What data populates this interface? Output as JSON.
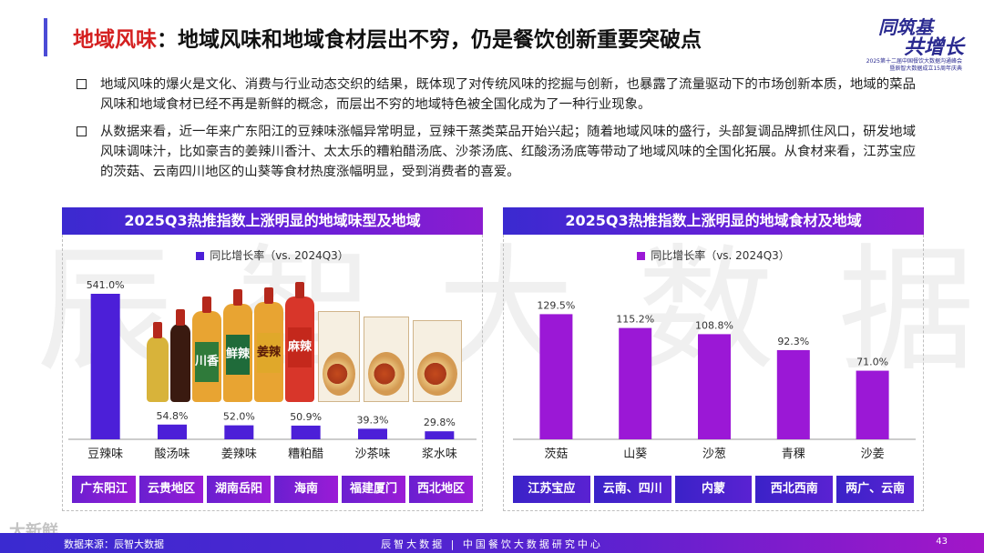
{
  "header": {
    "title_accent": "地域风味",
    "title_rest": "：地域风味和地域食材层出不穷，仍是餐饮创新重要突破点"
  },
  "logo": {
    "line1": "同筑基",
    "line2": "共增长",
    "sub1": "2025第十二届中国餐饮大数据沟通峰会",
    "sub2": "暨辰智大数据成立15周年庆典"
  },
  "bullets": [
    "地域风味的爆火是文化、消费与行业动态交织的结果，既体现了对传统风味的挖掘与创新，也暴露了流量驱动下的市场创新本质，地域的菜品风味和地域食材已经不再是新鲜的概念，而层出不穷的地域特色被全国化成为了一种行业现象。",
    "从数据来看，近一年来广东阳江的豆辣味涨幅异常明显，豆辣干蒸类菜品开始兴起；随着地域风味的盛行，头部复调品牌抓住风口，研发地域风味调味汁，比如豪吉的姜辣川香汁、太太乐的糟粕醋汤底、沙茶汤底、红酸汤汤底等带动了地域风味的全国化拓展。从食材来看，江苏宝应的茨菇、云南四川地区的山葵等食材热度涨幅明显，受到消费者的喜爱。"
  ],
  "watermark": "辰智大数据",
  "chart_data": [
    {
      "type": "bar",
      "title": "2025Q3热推指数上涨明显的地域味型及地域",
      "legend": "同比增长率（vs. 2024Q3）",
      "categories": [
        "豆辣味",
        "酸汤味",
        "姜辣味",
        "糟粕醋",
        "沙茶味",
        "浆水味"
      ],
      "values": [
        541.0,
        54.8,
        52.0,
        50.9,
        39.3,
        29.8
      ],
      "data_labels": [
        "541.0%",
        "54.8%",
        "52.0%",
        "50.9%",
        "39.3%",
        "29.8%"
      ],
      "regions": [
        "广东阳江",
        "云贵地区",
        "湖南岳阳",
        "海南",
        "福建厦门",
        "西北地区"
      ],
      "ylim": [
        0,
        541
      ],
      "color": "#4c1fd8",
      "product_labels": [
        "川香",
        "鲜辣",
        "姜辣",
        "麻辣"
      ]
    },
    {
      "type": "bar",
      "title": "2025Q3热推指数上涨明显的地域食材及地域",
      "legend": "同比增长率（vs. 2024Q3）",
      "categories": [
        "茨菇",
        "山葵",
        "沙葱",
        "青稞",
        "沙姜"
      ],
      "values": [
        129.5,
        115.2,
        108.8,
        92.3,
        71.0
      ],
      "data_labels": [
        "129.5%",
        "115.2%",
        "108.8%",
        "92.3%",
        "71.0%"
      ],
      "regions": [
        "江苏宝应",
        "云南、四川",
        "内蒙",
        "西北西南",
        "两广、云南"
      ],
      "ylim": [
        0,
        160
      ],
      "color": "#9b18d6"
    }
  ],
  "footer": {
    "source": "数据来源：辰智大数据",
    "center": "辰智大数据 | 中国餐饮大数据研究中心",
    "page": "43",
    "wm": "大新鲜"
  }
}
